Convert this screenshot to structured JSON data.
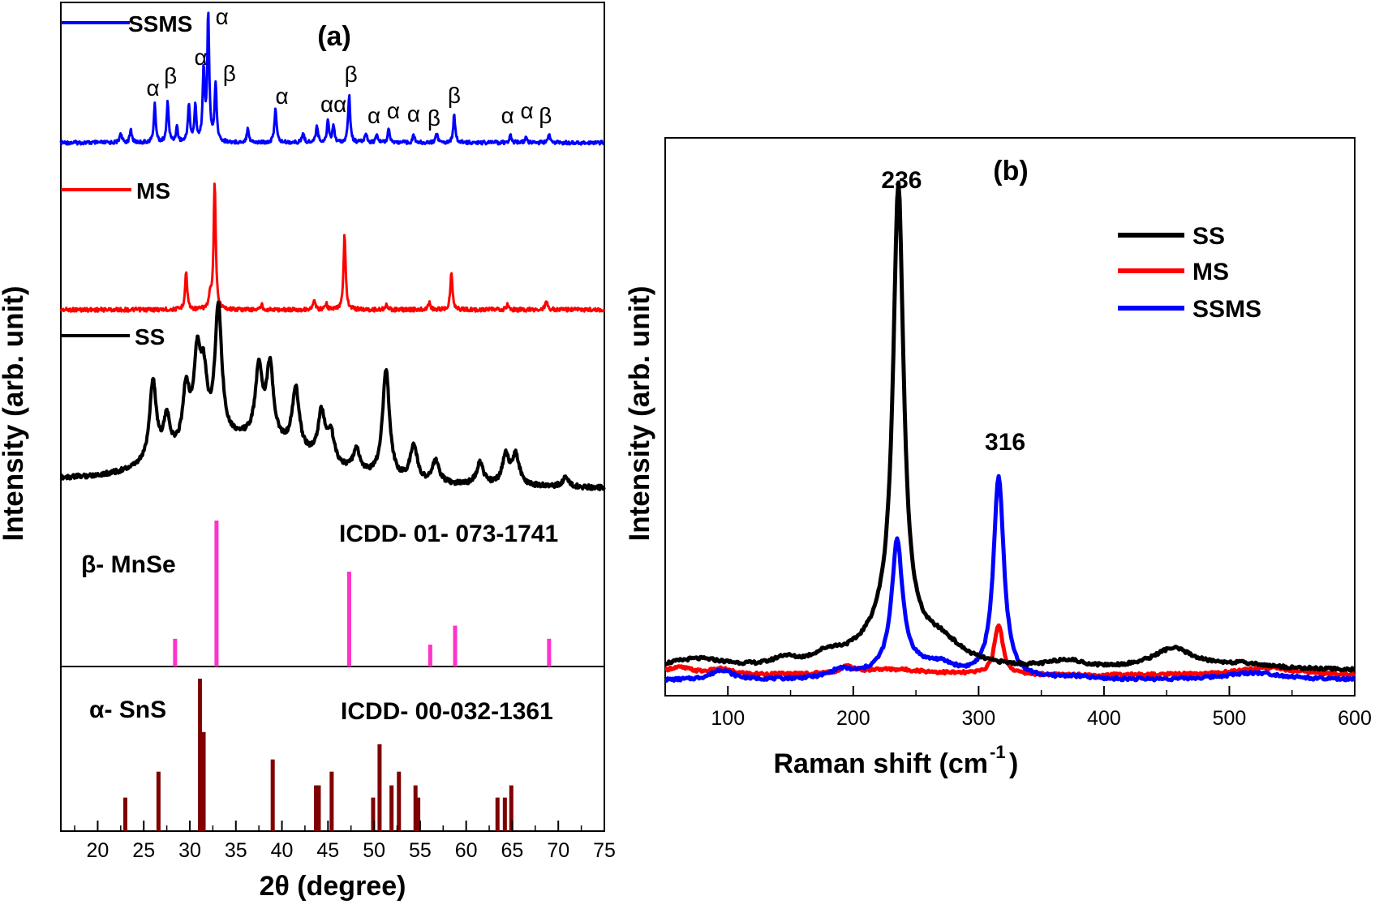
{
  "chart_data": [
    {
      "panel": "(a)",
      "type": "line",
      "xlabel": "2θ (degree)",
      "ylabel": "Intensity (arb. unit)",
      "xlim": [
        16,
        75
      ],
      "xticks": [
        20,
        25,
        30,
        35,
        40,
        45,
        50,
        55,
        60,
        65,
        70,
        75
      ],
      "legend_placement": "left of each trace",
      "series": [
        {
          "name": "SSMS",
          "color": "#0000ff",
          "peaks": [
            {
              "x": 22.5,
              "h": 0.08
            },
            {
              "x": 23.6,
              "h": 0.1
            },
            {
              "x": 26.2,
              "h": 0.3
            },
            {
              "x": 27.6,
              "h": 0.32
            },
            {
              "x": 28.6,
              "h": 0.12
            },
            {
              "x": 29.9,
              "h": 0.3
            },
            {
              "x": 30.6,
              "h": 0.28
            },
            {
              "x": 31.5,
              "h": 0.55
            },
            {
              "x": 32.0,
              "h": 1.0
            },
            {
              "x": 32.8,
              "h": 0.45
            },
            {
              "x": 36.3,
              "h": 0.12
            },
            {
              "x": 39.3,
              "h": 0.28
            },
            {
              "x": 42.3,
              "h": 0.08
            },
            {
              "x": 43.8,
              "h": 0.14
            },
            {
              "x": 45.0,
              "h": 0.18
            },
            {
              "x": 45.6,
              "h": 0.14
            },
            {
              "x": 47.3,
              "h": 0.38
            },
            {
              "x": 49.1,
              "h": 0.08
            },
            {
              "x": 50.3,
              "h": 0.06
            },
            {
              "x": 51.6,
              "h": 0.12
            },
            {
              "x": 54.3,
              "h": 0.06
            },
            {
              "x": 56.8,
              "h": 0.08
            },
            {
              "x": 58.7,
              "h": 0.22
            },
            {
              "x": 64.8,
              "h": 0.06
            },
            {
              "x": 66.5,
              "h": 0.04
            },
            {
              "x": 69.0,
              "h": 0.06
            }
          ],
          "annotations": [
            {
              "text": "α",
              "x": 26.0
            },
            {
              "text": "β",
              "x": 27.9
            },
            {
              "text": "α",
              "x": 31.2
            },
            {
              "text": "α",
              "x": 33.5
            },
            {
              "text": "β",
              "x": 34.3
            },
            {
              "text": "α",
              "x": 40.0
            },
            {
              "text": "αα",
              "x": 45.6
            },
            {
              "text": "β",
              "x": 47.5
            },
            {
              "text": "α",
              "x": 50.0
            },
            {
              "text": "α",
              "x": 52.1
            },
            {
              "text": "α",
              "x": 54.3
            },
            {
              "text": "β",
              "x": 56.5
            },
            {
              "text": "β",
              "x": 58.7
            },
            {
              "text": "α",
              "x": 64.5
            },
            {
              "text": "α",
              "x": 66.6
            },
            {
              "text": "β",
              "x": 68.6
            }
          ]
        },
        {
          "name": "MS",
          "color": "#ff0000",
          "peaks": [
            {
              "x": 29.6,
              "h": 0.3
            },
            {
              "x": 32.2,
              "h": 0.1
            },
            {
              "x": 32.7,
              "h": 1.0
            },
            {
              "x": 37.8,
              "h": 0.04
            },
            {
              "x": 43.5,
              "h": 0.07
            },
            {
              "x": 44.8,
              "h": 0.05
            },
            {
              "x": 46.8,
              "h": 0.6
            },
            {
              "x": 51.3,
              "h": 0.04
            },
            {
              "x": 56.0,
              "h": 0.06
            },
            {
              "x": 58.4,
              "h": 0.3
            },
            {
              "x": 64.5,
              "h": 0.04
            },
            {
              "x": 68.7,
              "h": 0.08
            }
          ]
        },
        {
          "name": "SS",
          "color": "#000000",
          "peaks": [
            {
              "x": 26.0,
              "h": 0.55
            },
            {
              "x": 27.5,
              "h": 0.25
            },
            {
              "x": 29.6,
              "h": 0.4
            },
            {
              "x": 30.8,
              "h": 0.55
            },
            {
              "x": 31.5,
              "h": 0.4
            },
            {
              "x": 33.1,
              "h": 0.9
            },
            {
              "x": 37.5,
              "h": 0.48
            },
            {
              "x": 38.7,
              "h": 0.5
            },
            {
              "x": 41.5,
              "h": 0.42
            },
            {
              "x": 44.3,
              "h": 0.32
            },
            {
              "x": 45.3,
              "h": 0.2
            },
            {
              "x": 48.1,
              "h": 0.15
            },
            {
              "x": 51.3,
              "h": 0.75
            },
            {
              "x": 54.3,
              "h": 0.25
            },
            {
              "x": 56.7,
              "h": 0.15
            },
            {
              "x": 61.5,
              "h": 0.15
            },
            {
              "x": 64.3,
              "h": 0.2
            },
            {
              "x": 65.4,
              "h": 0.2
            },
            {
              "x": 70.8,
              "h": 0.06
            }
          ]
        }
      ],
      "references": [
        {
          "name": "β- MnSe",
          "card": "ICDD- 01- 073-1741",
          "color": "#ff33cc",
          "lines": [
            {
              "x": 28.4,
              "h": 0.19
            },
            {
              "x": 32.9,
              "h": 1.0
            },
            {
              "x": 47.3,
              "h": 0.65
            },
            {
              "x": 56.1,
              "h": 0.15
            },
            {
              "x": 58.8,
              "h": 0.28
            },
            {
              "x": 69.0,
              "h": 0.19
            }
          ]
        },
        {
          "name": "α- SnS",
          "card": "ICDD- 00-032-1361",
          "color": "#800000",
          "lines": [
            {
              "x": 23.0,
              "h": 0.22
            },
            {
              "x": 26.6,
              "h": 0.39
            },
            {
              "x": 31.1,
              "h": 1.0
            },
            {
              "x": 31.5,
              "h": 0.65
            },
            {
              "x": 39.0,
              "h": 0.47
            },
            {
              "x": 43.7,
              "h": 0.3
            },
            {
              "x": 44.0,
              "h": 0.3
            },
            {
              "x": 45.4,
              "h": 0.39
            },
            {
              "x": 49.9,
              "h": 0.22
            },
            {
              "x": 50.6,
              "h": 0.57
            },
            {
              "x": 51.9,
              "h": 0.3
            },
            {
              "x": 52.7,
              "h": 0.39
            },
            {
              "x": 54.5,
              "h": 0.3
            },
            {
              "x": 54.8,
              "h": 0.22
            },
            {
              "x": 63.4,
              "h": 0.22
            },
            {
              "x": 64.2,
              "h": 0.22
            },
            {
              "x": 64.9,
              "h": 0.3
            }
          ]
        }
      ]
    },
    {
      "panel": "(b)",
      "type": "line",
      "xlabel": "Raman shift (cm",
      "xlabel_sup": "-1",
      "xlabel_close": ")",
      "ylabel": "Intensity (arb. unit)",
      "xlim": [
        50,
        600
      ],
      "xticks": [
        100,
        200,
        300,
        400,
        500,
        600
      ],
      "legend_placement": "top-right",
      "annotations": [
        {
          "text": "236",
          "x": 236
        },
        {
          "text": "316",
          "x": 316
        }
      ],
      "series": [
        {
          "name": "SS",
          "color": "#000000",
          "baseline": 0.05,
          "peaks": [
            {
              "x": 75,
              "h": 0.02,
              "w": 30
            },
            {
              "x": 145,
              "h": 0.015,
              "w": 10
            },
            {
              "x": 180,
              "h": 0.02,
              "w": 15
            },
            {
              "x": 236,
              "h": 0.88,
              "w": 5
            },
            {
              "x": 230,
              "h": 0.08,
              "w": 25
            },
            {
              "x": 270,
              "h": 0.04,
              "w": 20
            },
            {
              "x": 370,
              "h": 0.015,
              "w": 15
            },
            {
              "x": 455,
              "h": 0.04,
              "w": 20
            },
            {
              "x": 510,
              "h": 0.01,
              "w": 30
            }
          ]
        },
        {
          "name": "MS",
          "color": "#ff0000",
          "baseline": 0.04,
          "peaks": [
            {
              "x": 60,
              "h": 0.015,
              "w": 15
            },
            {
              "x": 95,
              "h": 0.01,
              "w": 10
            },
            {
              "x": 195,
              "h": 0.012,
              "w": 6
            },
            {
              "x": 230,
              "h": 0.012,
              "w": 40
            },
            {
              "x": 316,
              "h": 0.1,
              "w": 4
            },
            {
              "x": 530,
              "h": 0.015,
              "w": 30
            }
          ]
        },
        {
          "name": "SSMS",
          "color": "#0000ff",
          "baseline": 0.03,
          "peaks": [
            {
              "x": 95,
              "h": 0.02,
              "w": 10
            },
            {
              "x": 190,
              "h": 0.015,
              "w": 10
            },
            {
              "x": 235,
              "h": 0.25,
              "w": 5
            },
            {
              "x": 240,
              "h": 0.03,
              "w": 25
            },
            {
              "x": 270,
              "h": 0.02,
              "w": 15
            },
            {
              "x": 316,
              "h": 0.4,
              "w": 5
            },
            {
              "x": 375,
              "h": 0.005,
              "w": 15
            },
            {
              "x": 520,
              "h": 0.015,
              "w": 30
            }
          ]
        }
      ]
    }
  ]
}
